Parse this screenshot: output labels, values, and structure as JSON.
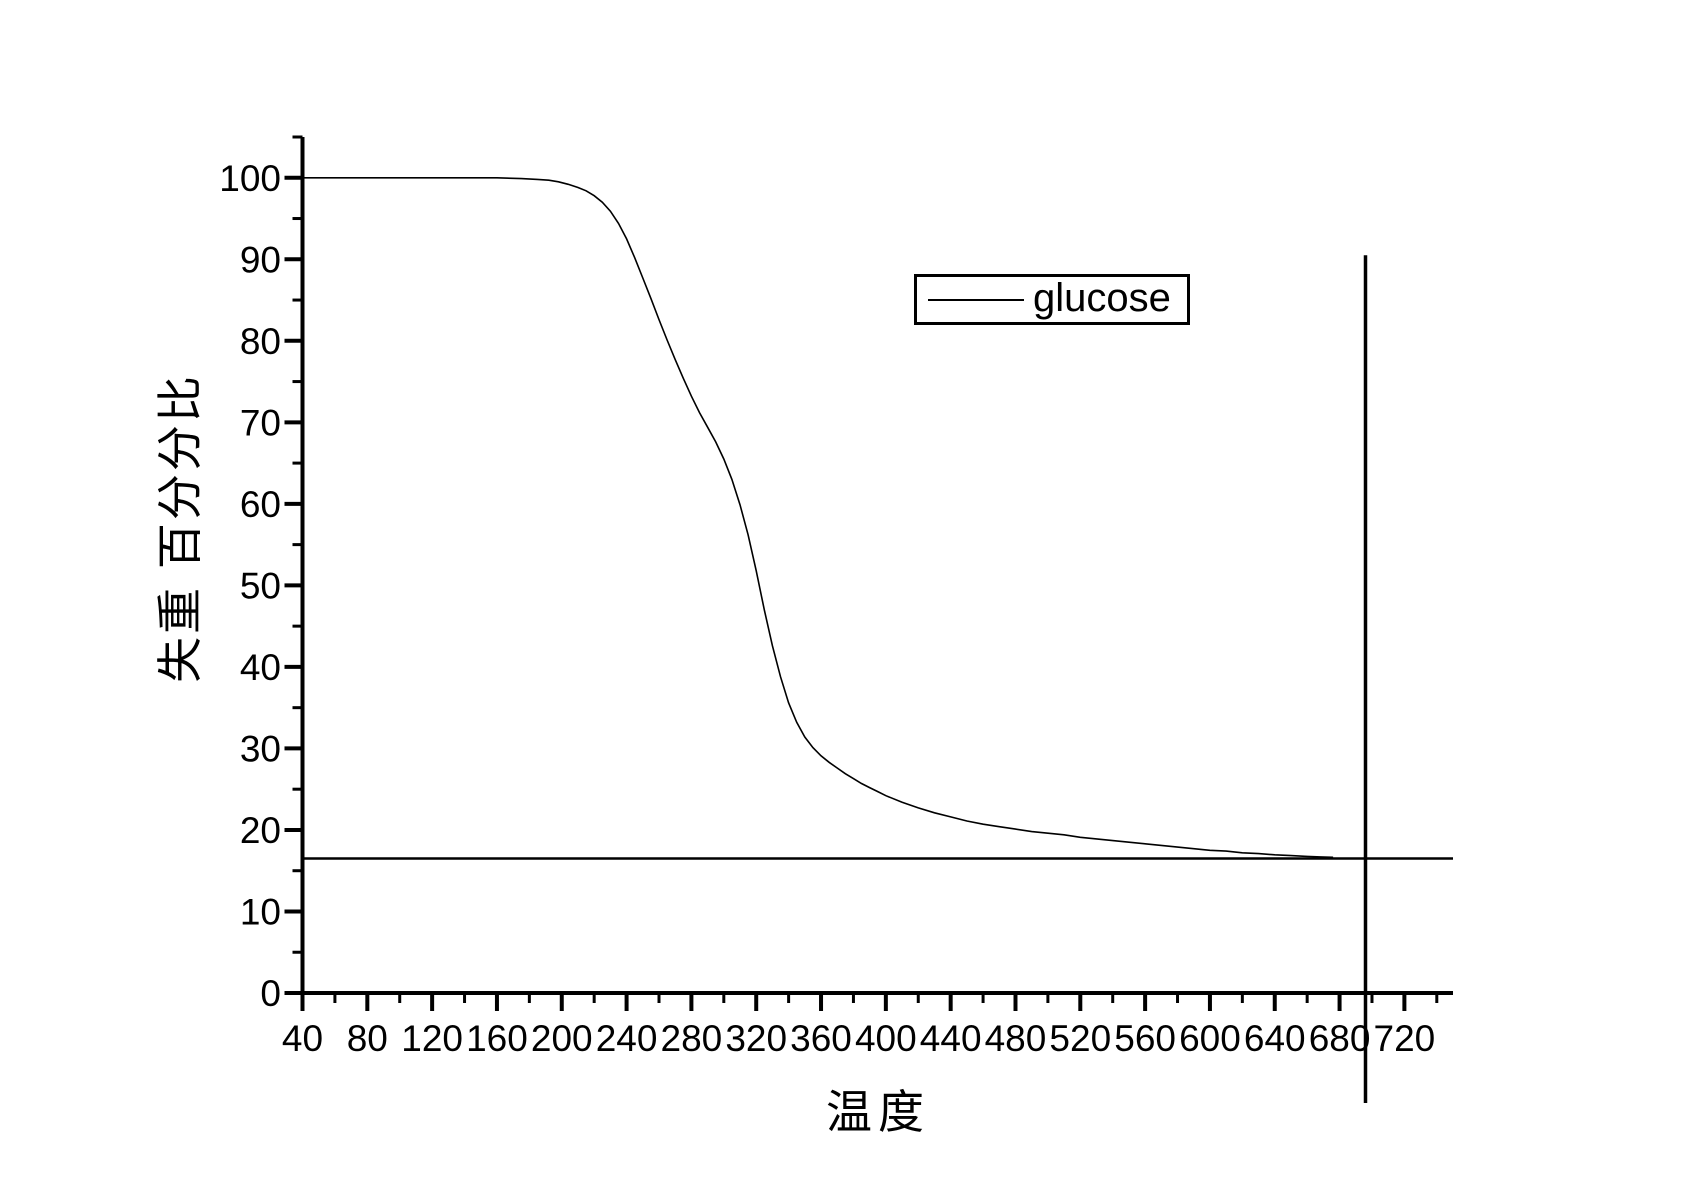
{
  "colors": {
    "foreground": "#000000",
    "background": "#ffffff"
  },
  "chart_data": {
    "type": "line",
    "title": "",
    "xlabel": "温度",
    "ylabel": "失重 百分分比",
    "grid": false,
    "legend": {
      "position": "top-right-inside",
      "entries": [
        "glucose"
      ]
    },
    "x_axis": {
      "min": 40,
      "max": 750,
      "major_ticks": [
        40,
        80,
        120,
        160,
        200,
        240,
        280,
        320,
        360,
        400,
        440,
        480,
        520,
        560,
        600,
        640,
        680,
        720
      ],
      "minor_ticks": [
        60,
        100,
        140,
        180,
        220,
        260,
        300,
        340,
        380,
        420,
        460,
        500,
        540,
        580,
        620,
        660,
        700,
        740
      ]
    },
    "y_axis": {
      "min": 0,
      "max": 105,
      "major_ticks": [
        0,
        10,
        20,
        30,
        40,
        50,
        60,
        70,
        80,
        90,
        100
      ],
      "minor_ticks": [
        5,
        15,
        25,
        35,
        45,
        55,
        65,
        75,
        85,
        95,
        105
      ]
    },
    "reference_lines": [
      {
        "orientation": "horizontal",
        "y": 16.5,
        "x_from": 40,
        "x_to": 750
      },
      {
        "orientation": "vertical",
        "x": 696,
        "y_from": -13.5,
        "y_to": 90.5
      }
    ],
    "series": [
      {
        "name": "glucose",
        "color": "#000000",
        "points": [
          [
            40,
            100
          ],
          [
            60,
            100
          ],
          [
            80,
            100
          ],
          [
            100,
            100
          ],
          [
            120,
            100
          ],
          [
            140,
            100
          ],
          [
            160,
            100
          ],
          [
            175,
            99.9
          ],
          [
            185,
            99.8
          ],
          [
            192,
            99.7
          ],
          [
            198,
            99.5
          ],
          [
            204,
            99.2
          ],
          [
            210,
            98.8
          ],
          [
            215,
            98.4
          ],
          [
            220,
            97.8
          ],
          [
            225,
            97.0
          ],
          [
            230,
            95.9
          ],
          [
            235,
            94.4
          ],
          [
            240,
            92.5
          ],
          [
            245,
            90.2
          ],
          [
            250,
            87.7
          ],
          [
            255,
            85.2
          ],
          [
            260,
            82.6
          ],
          [
            265,
            80.1
          ],
          [
            270,
            77.7
          ],
          [
            275,
            75.4
          ],
          [
            280,
            73.2
          ],
          [
            285,
            71.2
          ],
          [
            290,
            69.4
          ],
          [
            295,
            67.6
          ],
          [
            300,
            65.5
          ],
          [
            305,
            63.0
          ],
          [
            310,
            59.9
          ],
          [
            315,
            56.2
          ],
          [
            320,
            51.8
          ],
          [
            325,
            47.0
          ],
          [
            330,
            42.6
          ],
          [
            335,
            38.8
          ],
          [
            340,
            35.6
          ],
          [
            345,
            33.2
          ],
          [
            350,
            31.4
          ],
          [
            355,
            30.1
          ],
          [
            360,
            29.1
          ],
          [
            365,
            28.3
          ],
          [
            370,
            27.6
          ],
          [
            375,
            26.9
          ],
          [
            380,
            26.3
          ],
          [
            385,
            25.7
          ],
          [
            390,
            25.2
          ],
          [
            395,
            24.7
          ],
          [
            400,
            24.2
          ],
          [
            410,
            23.4
          ],
          [
            420,
            22.7
          ],
          [
            430,
            22.1
          ],
          [
            440,
            21.6
          ],
          [
            450,
            21.1
          ],
          [
            460,
            20.7
          ],
          [
            470,
            20.4
          ],
          [
            480,
            20.1
          ],
          [
            490,
            19.8
          ],
          [
            500,
            19.6
          ],
          [
            510,
            19.4
          ],
          [
            520,
            19.1
          ],
          [
            530,
            18.9
          ],
          [
            540,
            18.7
          ],
          [
            550,
            18.5
          ],
          [
            560,
            18.3
          ],
          [
            570,
            18.1
          ],
          [
            580,
            17.9
          ],
          [
            590,
            17.7
          ],
          [
            600,
            17.5
          ],
          [
            610,
            17.4
          ],
          [
            620,
            17.2
          ],
          [
            630,
            17.1
          ],
          [
            640,
            16.95
          ],
          [
            650,
            16.85
          ],
          [
            660,
            16.75
          ],
          [
            668,
            16.7
          ],
          [
            676,
            16.65
          ]
        ]
      }
    ]
  }
}
